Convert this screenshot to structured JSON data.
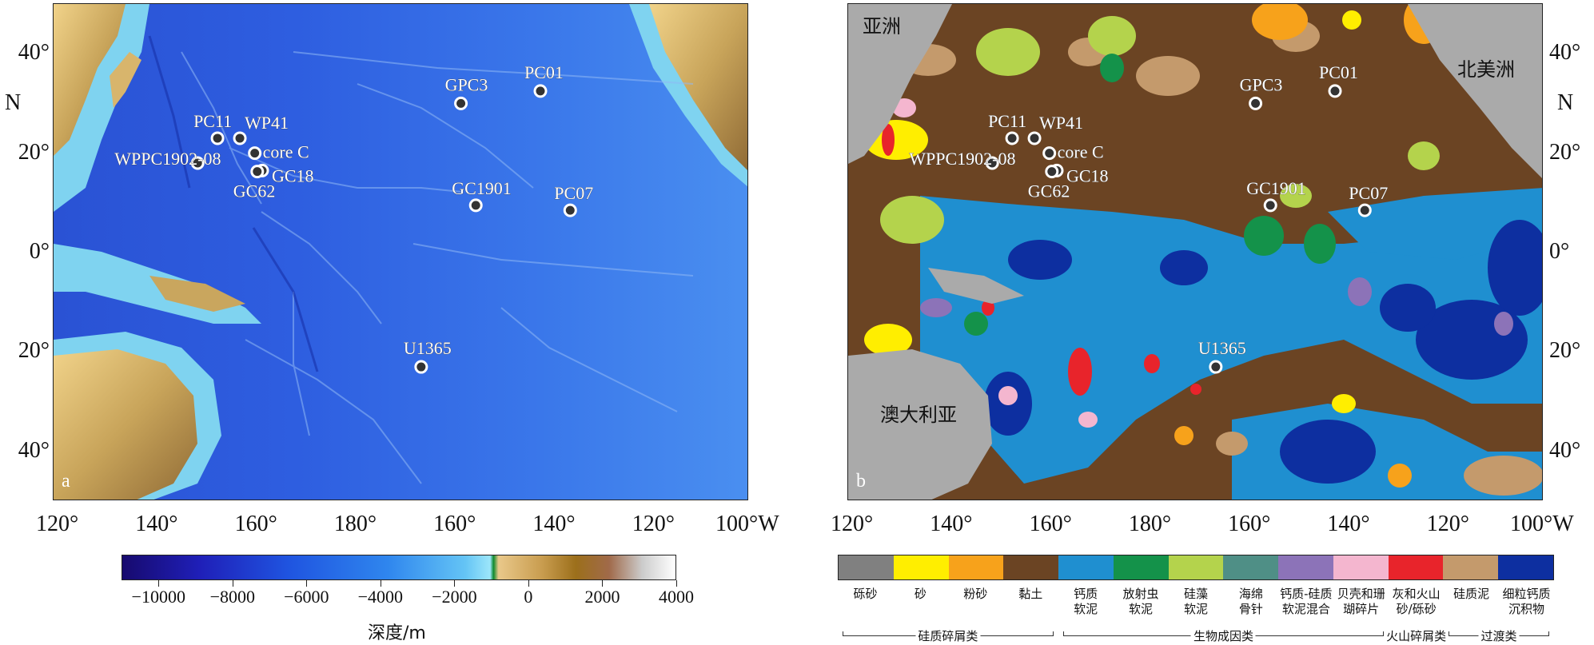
{
  "panel_a": {
    "letter": "a",
    "x_ticks": [
      "120°",
      "140°",
      "160°",
      "180°",
      "160°",
      "140°",
      "120°",
      "100°W"
    ],
    "y_ticks": [
      "40°",
      "20°",
      "0°",
      "20°",
      "40°"
    ],
    "y_axis_letter": "N",
    "sites": [
      {
        "name": "GPC3",
        "lon": -158,
        "lat": 30
      },
      {
        "name": "PC01",
        "lon": -142,
        "lat": 32.5
      },
      {
        "name": "PC11",
        "lon": 153,
        "lat": 23
      },
      {
        "name": "WP41",
        "lon": 157.5,
        "lat": 23
      },
      {
        "name": "core C",
        "lon": 160.5,
        "lat": 20
      },
      {
        "name": "WPPC1902-08",
        "lon": 149,
        "lat": 18
      },
      {
        "name": "GC18",
        "lon": 162,
        "lat": 16.5
      },
      {
        "name": "GC62",
        "lon": 161,
        "lat": 16.3
      },
      {
        "name": "GC1901",
        "lon": -155,
        "lat": 9.5
      },
      {
        "name": "PC07",
        "lon": -136,
        "lat": 8.5
      },
      {
        "name": "U1365",
        "lon": -166,
        "lat": -23
      }
    ]
  },
  "panel_b": {
    "letter": "b",
    "x_ticks": [
      "120°",
      "140°",
      "160°",
      "180°",
      "160°",
      "140°",
      "120°",
      "100°W"
    ],
    "y_ticks": [
      "40°",
      "20°",
      "0°",
      "20°",
      "40°"
    ],
    "y_axis_letter": "N",
    "continents": {
      "asia": "亚洲",
      "north_america": "北美洲",
      "australia": "澳大利亚"
    },
    "sites": [
      {
        "name": "GPC3",
        "lon": -158,
        "lat": 30
      },
      {
        "name": "PC01",
        "lon": -142,
        "lat": 32.5
      },
      {
        "name": "PC11",
        "lon": 153,
        "lat": 23
      },
      {
        "name": "WP41",
        "lon": 157.5,
        "lat": 23
      },
      {
        "name": "core C",
        "lon": 160.5,
        "lat": 20
      },
      {
        "name": "WPPC1902-08",
        "lon": 149,
        "lat": 18
      },
      {
        "name": "GC18",
        "lon": 162,
        "lat": 16.5
      },
      {
        "name": "GC62",
        "lon": 161,
        "lat": 16.3
      },
      {
        "name": "GC1901",
        "lon": -155,
        "lat": 9.5
      },
      {
        "name": "PC07",
        "lon": -136,
        "lat": 8.5
      },
      {
        "name": "U1365",
        "lon": -166,
        "lat": -23
      }
    ]
  },
  "depth_colorbar": {
    "title": "深度/m",
    "ticks": [
      "−10000",
      "−8000",
      "−6000",
      "−4000",
      "−2000",
      "0",
      "2000",
      "4000"
    ],
    "tick_values": [
      -10000,
      -8000,
      -6000,
      -4000,
      -2000,
      0,
      2000,
      4000
    ],
    "range": [
      -11000,
      4000
    ]
  },
  "sediment_legend": {
    "categories": [
      {
        "label": "砾砂",
        "color": "#808080"
      },
      {
        "label": "砂",
        "color": "#ffee00"
      },
      {
        "label": "粉砂",
        "color": "#f7a21b"
      },
      {
        "label": "黏土",
        "color": "#6b4423"
      },
      {
        "label": "钙质\n软泥",
        "color": "#1f8fd0"
      },
      {
        "label": "放射虫\n软泥",
        "color": "#14924a"
      },
      {
        "label": "硅藻\n软泥",
        "color": "#b4d34c"
      },
      {
        "label": "海绵\n骨针",
        "color": "#4f8f86"
      },
      {
        "label": "钙质-硅质\n软泥混合",
        "color": "#8c73b8"
      },
      {
        "label": "贝壳和珊\n瑚碎片",
        "color": "#f4b6cf"
      },
      {
        "label": "灰和火山\n砂/砾砂",
        "color": "#e8242b"
      },
      {
        "label": "硅质泥",
        "color": "#c49a6c"
      },
      {
        "label": "细粒钙质\n沉积物",
        "color": "#0d2fa0"
      }
    ],
    "groups": [
      {
        "label": "硅质碎屑类",
        "from": 0,
        "to": 3
      },
      {
        "label": "生物成因类",
        "from": 4,
        "to": 9
      },
      {
        "label": "火山碎屑类",
        "from": 10,
        "to": 10
      },
      {
        "label": "过渡类",
        "from": 11,
        "to": 12
      }
    ]
  }
}
